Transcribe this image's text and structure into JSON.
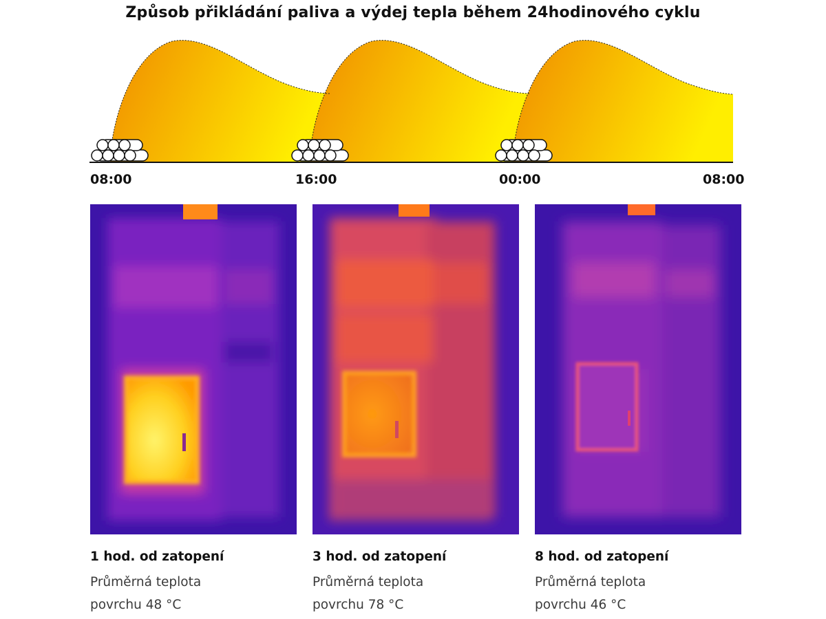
{
  "title": "Způsob přikládání paliva a výdej tepla během 24hodinového cyklu",
  "timeline": {
    "labels": [
      "08:00",
      "16:00",
      "00:00",
      "08:00"
    ],
    "fuel_loads": 3,
    "curve_color_start": "#f08c00",
    "curve_color_end": "#ffee00"
  },
  "panels": [
    {
      "title": "1 hod. od zatopení",
      "line1": "Průměrná teplota",
      "line2": "povrchu 48 °C",
      "heat_level": 0.45,
      "door_color": "#ffd020",
      "body_color": "#9a2cc8",
      "band_color": "#c83aa0"
    },
    {
      "title": "3 hod. od zatopení",
      "line1": "Průměrná teplota",
      "line2": "povrchu 78 °C",
      "heat_level": 0.9,
      "door_color": "#ff9a10",
      "body_color": "#e0504a",
      "band_color": "#f07030"
    },
    {
      "title": "8 hod. od zatopení",
      "line1": "Průměrná teplota",
      "line2": "povrchu 46 °C",
      "heat_level": 0.4,
      "door_color": "#e0406a",
      "body_color": "#a43ab8",
      "band_color": "#c0429a"
    }
  ]
}
